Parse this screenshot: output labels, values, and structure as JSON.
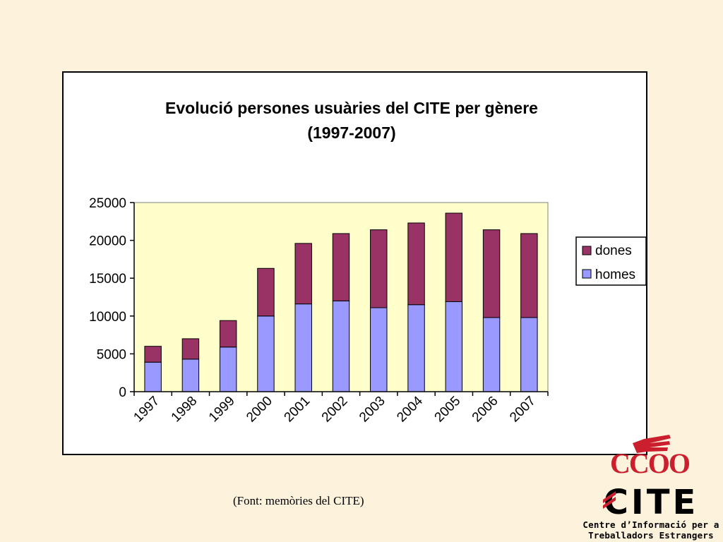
{
  "chart_data": {
    "type": "bar",
    "stacked": true,
    "title_lines": [
      "Evolució persones usuàries del CITE per gènere",
      "(1997-2007)"
    ],
    "categories": [
      "1997",
      "1998",
      "1999",
      "2000",
      "2001",
      "2002",
      "2003",
      "2004",
      "2005",
      "2006",
      "2007"
    ],
    "series": [
      {
        "name": "homes",
        "color": "#9999ff",
        "values": [
          3900,
          4300,
          5900,
          10000,
          11600,
          12000,
          11100,
          11500,
          11900,
          9800,
          9800
        ]
      },
      {
        "name": "dones",
        "color": "#993366",
        "values": [
          2100,
          2700,
          3500,
          6300,
          8000,
          8900,
          10300,
          10800,
          11700,
          11600,
          11100
        ]
      }
    ],
    "ylim": [
      0,
      25000
    ],
    "yticks": [
      "0",
      "5000",
      "10000",
      "15000",
      "20000",
      "25000"
    ],
    "yticks_values": [
      0,
      5000,
      10000,
      15000,
      20000,
      25000
    ],
    "legend_position": "right",
    "plot_background": "#ffffcc"
  },
  "footer": {
    "source": "(Font: memòries del CITE)"
  },
  "logos": {
    "ccoo_text": "CCOO",
    "cite_text": "CITE",
    "tagline_line1": "Centre d’Informació per a",
    "tagline_line2": "Treballadors Estrangers"
  }
}
